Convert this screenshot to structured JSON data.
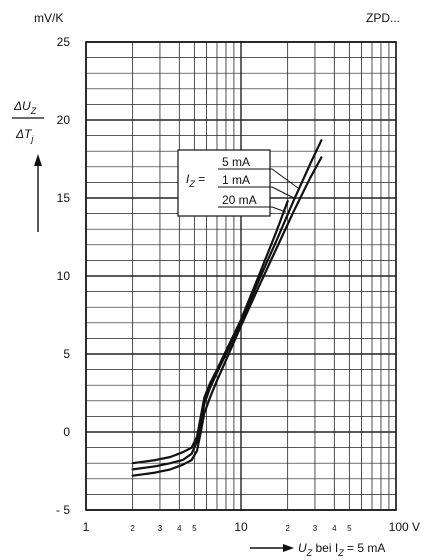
{
  "chart_data": {
    "type": "line",
    "title": "ZPD...",
    "y_unit": "mV/K",
    "y_label_num": "ΔU",
    "y_label_num_sub": "Z",
    "y_label_den": "ΔT",
    "y_label_den_sub": "j",
    "x_unit": "100 V",
    "x_label_main": "U",
    "x_label_sub": "Z",
    "x_label_mid": " bei I",
    "x_label_sub2": "Z",
    "x_label_end": " = 5 mA",
    "x_scale": "log",
    "xlim": [
      1,
      100
    ],
    "ylim": [
      -5,
      25
    ],
    "y_ticks": [
      -5,
      0,
      5,
      10,
      15,
      20,
      25
    ],
    "y_tick_labels": [
      "- 5",
      "0",
      "5",
      "10",
      "15",
      "20",
      "25"
    ],
    "x_major_ticks": [
      1,
      10
    ],
    "x_major_labels": [
      "1",
      "10"
    ],
    "x_minor_ticks": [
      2,
      3,
      4,
      5,
      20,
      30,
      40,
      50
    ],
    "x_minor_labels": [
      "2",
      "3",
      "4",
      "5",
      "2",
      "3",
      "4",
      "5"
    ],
    "grid": true,
    "legend_prefix": "I",
    "legend_prefix_sub": "Z",
    "legend_eq": " =",
    "series": [
      {
        "name": "5 mA",
        "x": [
          2.0,
          2.8,
          3.5,
          4.2,
          4.8,
          5.2,
          5.5,
          5.8,
          6.3,
          7.0,
          8.0,
          10.0,
          13.0,
          17.0,
          22.0,
          28.0,
          33.0
        ],
        "y": [
          -2.8,
          -2.6,
          -2.4,
          -2.1,
          -1.8,
          -1.2,
          0.0,
          1.2,
          2.2,
          3.3,
          4.6,
          6.8,
          9.3,
          11.8,
          14.2,
          16.3,
          17.6
        ]
      },
      {
        "name": "1 mA",
        "x": [
          2.0,
          2.8,
          3.5,
          4.2,
          4.8,
          5.2,
          5.5,
          5.8,
          6.3,
          7.0,
          8.0,
          10.0,
          13.0,
          17.0,
          22.0,
          28.0,
          33.0
        ],
        "y": [
          -2.4,
          -2.2,
          -2.0,
          -1.8,
          -1.4,
          -0.6,
          0.6,
          1.8,
          2.8,
          3.8,
          5.0,
          7.0,
          9.7,
          12.3,
          14.9,
          17.2,
          18.7
        ]
      },
      {
        "name": "20 mA",
        "x": [
          2.0,
          2.8,
          3.5,
          4.2,
          4.8,
          5.2,
          5.5,
          5.8,
          6.3,
          7.0,
          8.0,
          10.0,
          13.0,
          17.0,
          20.0
        ],
        "y": [
          -2.0,
          -1.8,
          -1.6,
          -1.3,
          -1.0,
          -0.3,
          1.0,
          2.2,
          3.1,
          4.0,
          5.2,
          7.2,
          10.0,
          12.9,
          14.8
        ]
      }
    ]
  }
}
